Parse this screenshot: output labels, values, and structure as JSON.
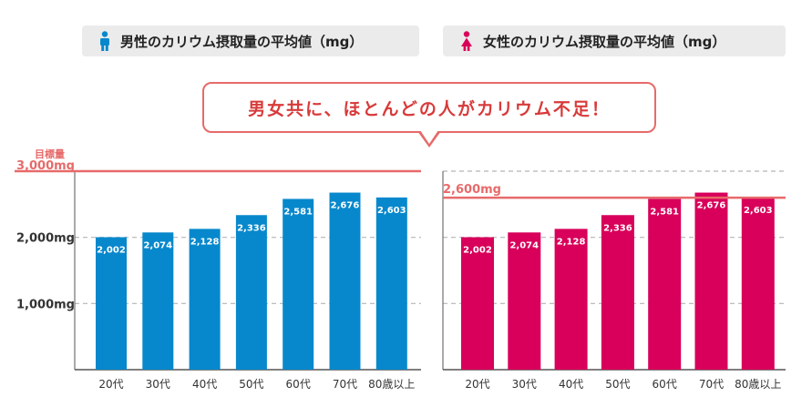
{
  "legend": {
    "male": "男性のカリウム摂取量の平均値（mg）",
    "female": "女性のカリウム摂取量の平均値（mg）",
    "male_icon": "male-person-icon",
    "female_icon": "female-person-icon"
  },
  "callout": {
    "text": "男女共に、ほとんどの人がカリウム不足！"
  },
  "colors": {
    "male": "#0788cc",
    "female": "#d8005a",
    "target": "#e76a6a",
    "grid": "#b5b5b5"
  },
  "chart_data": [
    {
      "type": "bar",
      "name": "male",
      "categories": [
        "20代",
        "30代",
        "40代",
        "50代",
        "60代",
        "70代",
        "80歳以上"
      ],
      "values": [
        2002,
        2074,
        2128,
        2336,
        2581,
        2676,
        2603
      ],
      "value_labels": [
        "2,002",
        "2,074",
        "2,128",
        "2,336",
        "2,581",
        "2,676",
        "2,603"
      ],
      "ylim": [
        0,
        3000
      ],
      "yticks": [
        1000,
        2000,
        3000
      ],
      "ytick_labels": [
        "1,000mg",
        "2,000mg",
        "3,000mg"
      ],
      "target": 3000,
      "target_caption": "目標量",
      "grid": true
    },
    {
      "type": "bar",
      "name": "female",
      "categories": [
        "20代",
        "30代",
        "40代",
        "50代",
        "60代",
        "70代",
        "80歳以上"
      ],
      "values": [
        2002,
        2074,
        2128,
        2336,
        2581,
        2676,
        2603
      ],
      "value_labels": [
        "2,002",
        "2,074",
        "2,128",
        "2,336",
        "2,581",
        "2,676",
        "2,603"
      ],
      "ylim": [
        0,
        3000
      ],
      "yticks": [
        1000,
        2000,
        3000
      ],
      "target": 2600,
      "target_label": "2,600mg",
      "grid": true
    }
  ]
}
